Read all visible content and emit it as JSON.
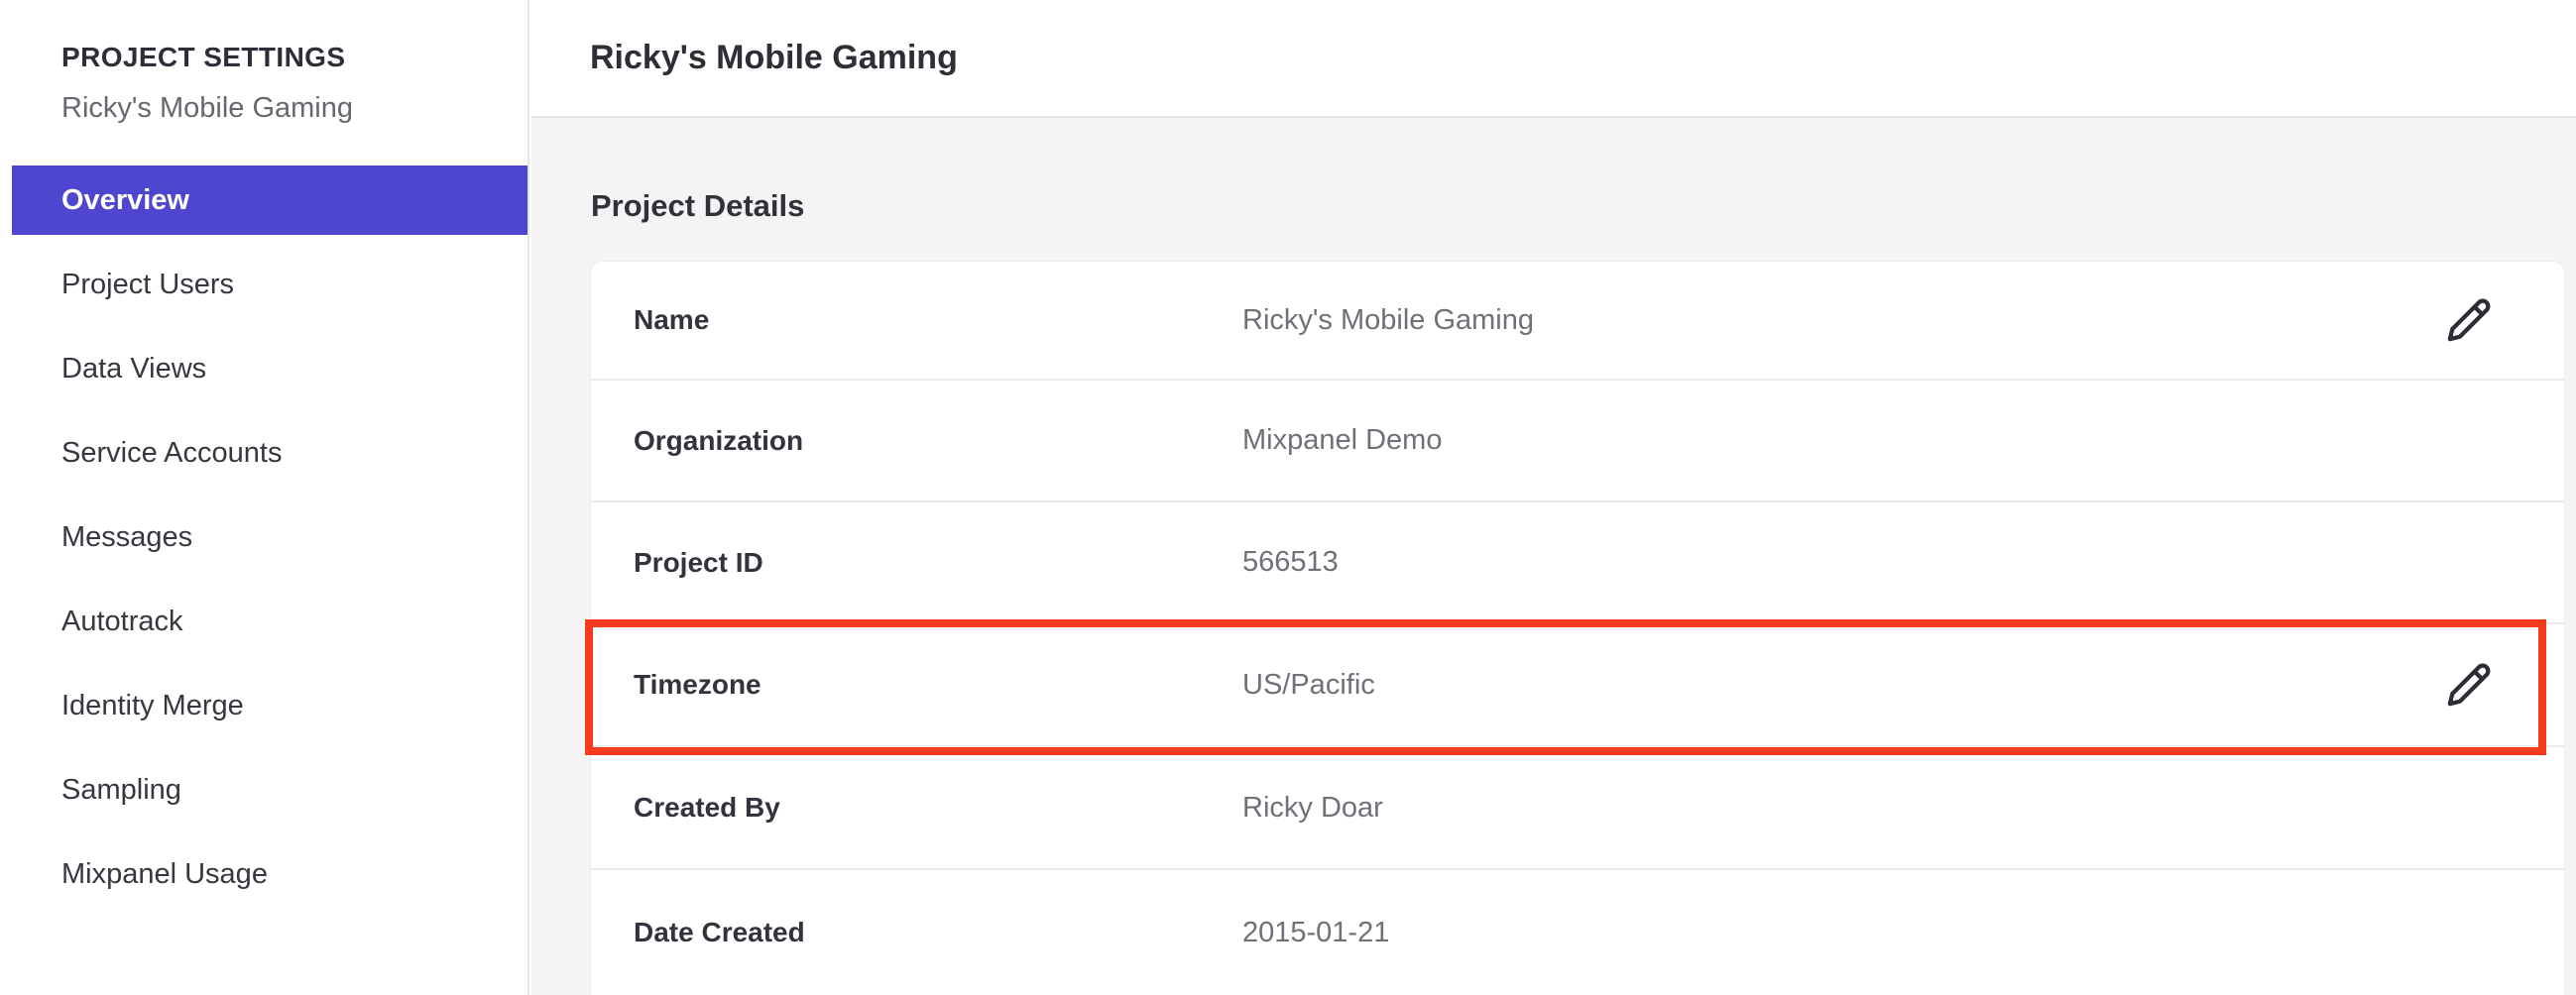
{
  "colors": {
    "accent": "#4f46cf",
    "annotation": "#f43b1e"
  },
  "sidebar": {
    "heading": "PROJECT SETTINGS",
    "project_name": "Ricky's Mobile Gaming",
    "items": [
      {
        "label": "Overview",
        "active": true
      },
      {
        "label": "Project Users",
        "active": false
      },
      {
        "label": "Data Views",
        "active": false
      },
      {
        "label": "Service Accounts",
        "active": false
      },
      {
        "label": "Messages",
        "active": false
      },
      {
        "label": "Autotrack",
        "active": false
      },
      {
        "label": "Identity Merge",
        "active": false
      },
      {
        "label": "Sampling",
        "active": false
      },
      {
        "label": "Mixpanel Usage",
        "active": false
      }
    ]
  },
  "header": {
    "title": "Ricky's Mobile Gaming"
  },
  "main": {
    "section_title": "Project Details",
    "details": [
      {
        "label": "Name",
        "value": "Ricky's Mobile Gaming",
        "editable": true,
        "highlighted": false
      },
      {
        "label": "Organization",
        "value": "Mixpanel Demo",
        "editable": false,
        "highlighted": false
      },
      {
        "label": "Project ID",
        "value": "566513",
        "editable": false,
        "highlighted": false
      },
      {
        "label": "Timezone",
        "value": "US/Pacific",
        "editable": true,
        "highlighted": true
      },
      {
        "label": "Created By",
        "value": "Ricky Doar",
        "editable": false,
        "highlighted": false
      },
      {
        "label": "Date Created",
        "value": "2015-01-21",
        "editable": false,
        "highlighted": false
      }
    ]
  },
  "icons": {
    "edit": "pencil-icon"
  }
}
